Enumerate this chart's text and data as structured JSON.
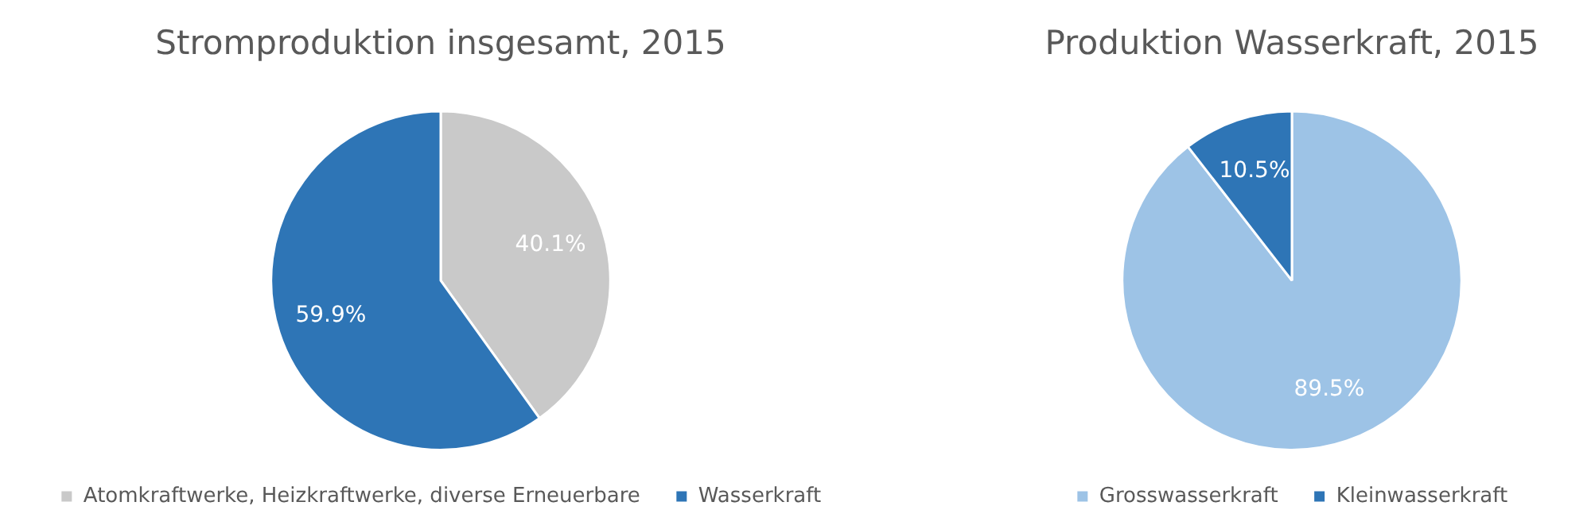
{
  "chart_data": [
    {
      "type": "pie",
      "title": "Stromproduktion insgesamt, 2015",
      "categories": [
        "Atomkraftwerke, Heizkraftwerke, diverse Erneuerbare",
        "Wasserkraft"
      ],
      "values": [
        40.1,
        59.9
      ],
      "colors": [
        "#c9c9c9",
        "#2e75b6"
      ],
      "value_labels": [
        "40.1%",
        "59.9%"
      ],
      "legend": "bottom"
    },
    {
      "type": "pie",
      "title": "Produktion Wasserkraft, 2015",
      "categories": [
        "Grosswasserkraft",
        "Kleinwasserkraft"
      ],
      "values": [
        89.5,
        10.5
      ],
      "colors": [
        "#9dc3e6",
        "#2e75b6"
      ],
      "value_labels": [
        "89.5%",
        "10.5%"
      ],
      "legend": "bottom"
    }
  ]
}
